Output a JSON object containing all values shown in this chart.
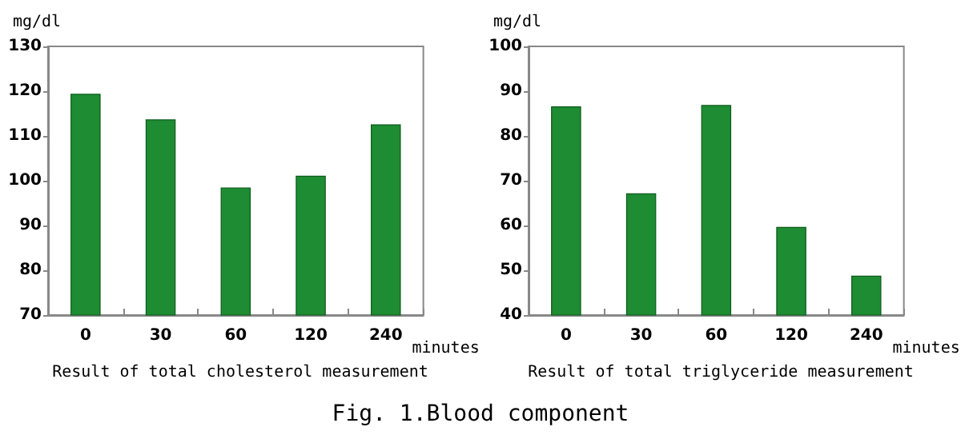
{
  "chart_data": [
    {
      "type": "bar",
      "title": "Result of total cholesterol measurement",
      "xlabel": "minutes",
      "ylabel": "mg/dl",
      "categories": [
        "0",
        "30",
        "60",
        "120",
        "240"
      ],
      "values": [
        119.4,
        113.7,
        98.5,
        101.1,
        112.6
      ],
      "color": "#1e8c32",
      "ylim": [
        70,
        130
      ],
      "yticks": [
        70,
        80,
        90,
        100,
        110,
        120,
        130
      ],
      "grid": false,
      "annotations": [
        "Fig. 1.Blood component"
      ]
    },
    {
      "type": "bar",
      "title": "Result of total triglyceride measurement",
      "xlabel": "minutes",
      "ylabel": "mg/dl",
      "categories": [
        "0",
        "30",
        "60",
        "120",
        "240"
      ],
      "values": [
        86.6,
        67.2,
        86.9,
        59.7,
        48.8
      ],
      "color": "#1e8c32",
      "ylim": [
        40,
        100
      ],
      "yticks": [
        40,
        50,
        60,
        70,
        80,
        90,
        100
      ],
      "grid": false
    }
  ]
}
